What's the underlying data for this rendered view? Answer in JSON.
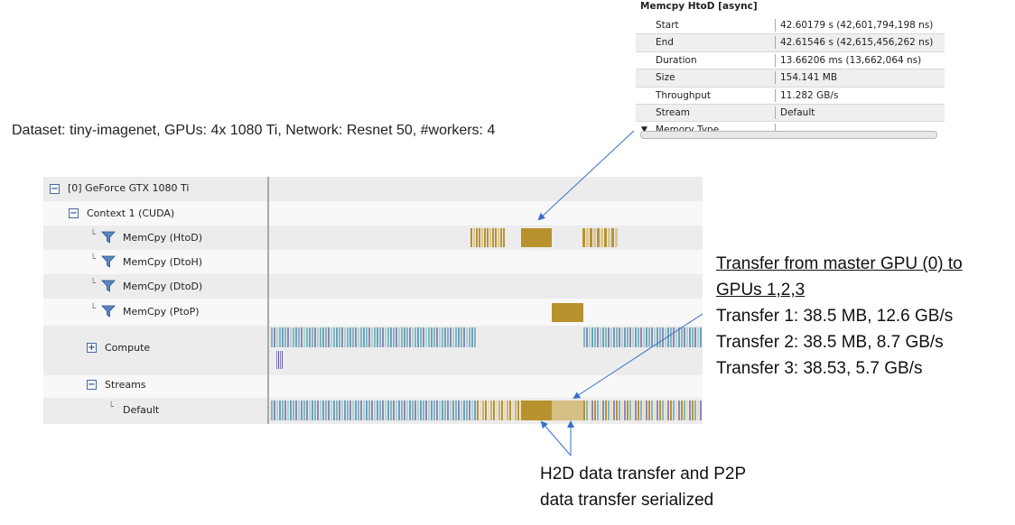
{
  "properties_panel": {
    "title": "Memcpy HtoD [async]",
    "rows": [
      {
        "key": "Start",
        "value": "42.60179 s (42,601,794,198 ns)"
      },
      {
        "key": "End",
        "value": "42.61546 s (42,615,456,262 ns)"
      },
      {
        "key": "Duration",
        "value": "13.66206 ms (13,662,064 ns)"
      },
      {
        "key": "Size",
        "value": "154.141 MB"
      },
      {
        "key": "Throughput",
        "value": "11.282 GB/s"
      },
      {
        "key": "Stream",
        "value": "Default"
      },
      {
        "key": "Memory Type",
        "value": ""
      }
    ]
  },
  "caption": "Dataset: tiny-imagenet, GPUs: 4x 1080 Ti, Network: Resnet 50, #workers: 4",
  "tree": {
    "device": "[0] GeForce GTX 1080 Ti",
    "context": "Context 1 (CUDA)",
    "memcpy_htod": "MemCpy (HtoD)",
    "memcpy_dtoh": "MemCpy (DtoH)",
    "memcpy_dtod": "MemCpy (DtoD)",
    "memcpy_ptop": "MemCpy (PtoP)",
    "compute": "Compute",
    "streams": "Streams",
    "default_stream": "Default",
    "expand_glyph": "+",
    "collapse_glyph": "−"
  },
  "annotation_right": {
    "heading_line1": "Transfer from master GPU (0) to",
    "heading_line2": "GPUs 1,2,3",
    "transfer1": "Transfer 1: 38.5 MB, 12.6 GB/s",
    "transfer2": "Transfer 2: 38.5 MB, 8.7 GB/s",
    "transfer3": "Transfer 3: 38.53, 5.7 GB/s"
  },
  "annotation_bottom": {
    "line1": "H2D data transfer and P2P",
    "line2": "data transfer serialized"
  },
  "colors": {
    "memcpy": "#b8922e",
    "compute_teal": "#7fb8be",
    "compute_purple": "#8f86b8",
    "arrow": "#3c6ec8"
  },
  "icons": {
    "funnel": "funnel-icon",
    "expand": "plus-box-icon",
    "collapse": "minus-box-icon",
    "tree_branch": "tree-branch-icon",
    "disclosure": "triangle-down-icon"
  }
}
